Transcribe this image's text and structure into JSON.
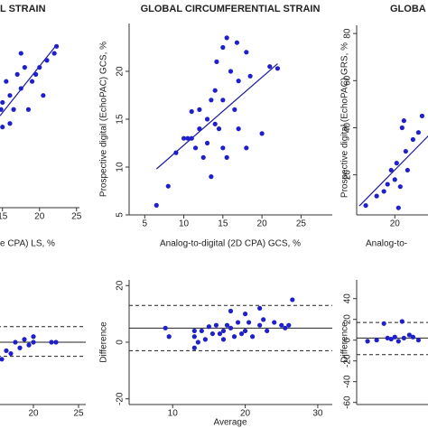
{
  "chart_data": [
    {
      "type": "scatter",
      "title": "L STRAIN",
      "xlabel": "e CPA) LS, %",
      "xlim": [
        4.9,
        25.4
      ],
      "ylim": [
        2,
        28
      ],
      "xticks": [
        15,
        20,
        25
      ],
      "yticks": [],
      "color": "#1f1fcc",
      "x": [
        15,
        15.5,
        15,
        16,
        16.5,
        17,
        17.5,
        17.5,
        18,
        18.5,
        19,
        19.5,
        20,
        20.5,
        21,
        22,
        22.3,
        16,
        14.8
      ],
      "y": [
        17,
        20,
        13.5,
        18,
        16,
        21,
        19,
        24,
        22,
        16,
        20,
        21,
        22,
        18,
        23,
        24,
        25,
        14,
        16
      ],
      "fit": {
        "x": [
          14.66,
          22.3
        ],
        "y": [
          15.1,
          25.2
        ]
      }
    },
    {
      "type": "scatter",
      "title": "GLOBAL CIRCUMFERENTIAL STRAIN",
      "xlabel": "Analog-to-digital (2D CPA) GCS, %",
      "ylabel": "Prospective digital (EchoPAC) GCS, %",
      "xlim": [
        3,
        29
      ],
      "ylim": [
        5,
        25
      ],
      "xticks": [
        5,
        10,
        15,
        20,
        25
      ],
      "yticks": [
        5,
        10,
        15,
        20
      ],
      "color": "#1f1fcc",
      "x": [
        6.5,
        8,
        9,
        10,
        10.5,
        11,
        11,
        11.5,
        12,
        12,
        12.5,
        13,
        13,
        13.5,
        13.5,
        14,
        14,
        14.2,
        14.5,
        15,
        15,
        15,
        15.5,
        16,
        16.5,
        17,
        17,
        18,
        18,
        18.5,
        20,
        21,
        22,
        15.5,
        16.8
      ],
      "y": [
        6,
        8,
        11.5,
        13,
        13,
        15.8,
        13,
        12,
        14,
        16,
        11,
        15,
        12.5,
        9,
        17,
        18,
        14.5,
        21,
        14,
        17,
        12,
        22.5,
        11,
        20,
        16,
        14,
        19,
        12,
        22,
        19.5,
        13.5,
        20.5,
        20.3,
        23.5,
        23
      ],
      "fit": {
        "x": [
          6.5,
          22
        ],
        "y": [
          9.8,
          20.8
        ]
      }
    },
    {
      "type": "scatter",
      "title": "GLOBA",
      "xlabel": "Analog-to-",
      "ylabel": "Prospective digital (EchoPAC) GRS, %",
      "xlim": [
        -1,
        81
      ],
      "ylim": [
        3,
        83.5
      ],
      "xticks": [
        20
      ],
      "yticks": [
        20,
        40,
        60,
        80
      ],
      "color": "#1f1fcc",
      "x": [
        4,
        10,
        14,
        16,
        18,
        20,
        21,
        22,
        23,
        24,
        25,
        26,
        27,
        30,
        33,
        35
      ],
      "y": [
        7,
        11,
        13,
        16,
        22,
        18,
        25,
        6,
        15,
        40,
        43,
        30,
        22,
        35,
        38,
        45
      ],
      "fit": {
        "x": [
          0.5,
          39
        ],
        "y": [
          6.8,
          37
        ]
      }
    },
    {
      "type": "blandaltman",
      "xlim": [
        8.3,
        25.8
      ],
      "ylim": [
        -22,
        22
      ],
      "xticks": [
        20,
        25
      ],
      "yticks": [],
      "color": "#1f1fcc",
      "x": [
        12,
        13,
        14,
        15,
        15.5,
        16,
        16.5,
        17,
        17.5,
        18,
        18.5,
        19,
        19.5,
        20,
        20,
        22,
        22.5
      ],
      "y": [
        2,
        -1,
        -2,
        -3,
        0,
        -1,
        -6,
        -3,
        -4,
        0,
        -2,
        1,
        -1,
        0,
        2,
        0,
        0
      ],
      "mean": 0,
      "upper": 5.5,
      "lower": -5
    },
    {
      "type": "blandaltman",
      "xlabel": "Average",
      "ylabel": "Difference",
      "xlim": [
        4,
        32
      ],
      "ylim": [
        -22,
        22
      ],
      "xticks": [
        10,
        20,
        30
      ],
      "yticks": [
        20,
        0,
        -20
      ],
      "color": "#1f1fcc",
      "x": [
        9,
        9.5,
        13,
        13,
        13.5,
        14,
        14.5,
        15,
        15.5,
        16,
        16.5,
        17,
        17,
        17.5,
        18,
        18.5,
        19,
        19.5,
        20,
        20,
        20.5,
        21,
        22,
        22,
        22.5,
        23,
        24,
        25,
        25.5,
        26,
        26.5,
        18,
        13
      ],
      "y": [
        5,
        2,
        -2,
        2,
        0,
        4,
        1,
        5.5,
        3,
        6,
        3,
        1,
        4,
        6,
        5,
        2,
        7,
        3,
        4,
        10,
        7,
        2,
        6,
        12,
        8,
        4,
        7,
        6,
        5,
        6,
        15,
        11,
        4
      ],
      "mean": 5,
      "upper": 13,
      "lower": -3
    },
    {
      "type": "blandaltman",
      "ylabel": "Difference",
      "xlim": [
        -1,
        81
      ],
      "ylim": [
        -62,
        58
      ],
      "xticks": [],
      "yticks": [
        40,
        20,
        0,
        -20,
        -40,
        -60
      ],
      "color": "#1f1fcc",
      "x": [
        5,
        10,
        14,
        16,
        18,
        20,
        22,
        24,
        25,
        28,
        30,
        33
      ],
      "y": [
        -1,
        0,
        16,
        2,
        1,
        3,
        -1,
        18,
        2,
        5,
        3,
        0
      ],
      "mean": 2,
      "upper": 17,
      "lower": -14
    }
  ]
}
